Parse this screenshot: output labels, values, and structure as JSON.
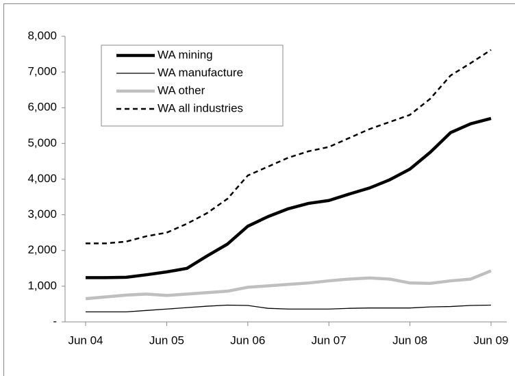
{
  "chart_data": {
    "type": "line",
    "categories": [
      "Jun 04",
      null,
      null,
      null,
      "Jun 05",
      null,
      null,
      null,
      "Jun 06",
      null,
      null,
      null,
      "Jun 07",
      null,
      null,
      null,
      "Jun 08",
      null,
      null,
      null,
      "Jun 09"
    ],
    "series": [
      {
        "name": "WA mining",
        "color": "#000000",
        "width": 4.5,
        "style": "solid",
        "values": [
          1240,
          1240,
          1250,
          1320,
          1400,
          1500,
          1850,
          2180,
          2680,
          2950,
          3170,
          3320,
          3400,
          3580,
          3750,
          3980,
          4280,
          4750,
          5300,
          5550,
          5700
        ]
      },
      {
        "name": "WA manufacture",
        "color": "#000000",
        "width": 1.3,
        "style": "solid",
        "values": [
          280,
          280,
          280,
          320,
          360,
          400,
          440,
          470,
          460,
          380,
          360,
          360,
          360,
          380,
          390,
          390,
          390,
          420,
          430,
          460,
          470
        ]
      },
      {
        "name": "WA other",
        "color": "#bfbfbf",
        "width": 4.5,
        "style": "solid",
        "values": [
          650,
          700,
          750,
          780,
          740,
          780,
          820,
          860,
          970,
          1010,
          1050,
          1090,
          1150,
          1200,
          1230,
          1200,
          1090,
          1080,
          1150,
          1200,
          1430
        ]
      },
      {
        "name": "WA all industries",
        "color": "#000000",
        "width": 2.5,
        "style": "dashed",
        "values": [
          2200,
          2200,
          2250,
          2400,
          2500,
          2750,
          3050,
          3450,
          4100,
          4350,
          4600,
          4780,
          4900,
          5150,
          5400,
          5600,
          5800,
          6250,
          6900,
          7250,
          7620
        ]
      }
    ],
    "ylim": [
      0,
      8000
    ],
    "yticks": [
      {
        "value": 0,
        "label": "-"
      },
      {
        "value": 1000,
        "label": "1,000"
      },
      {
        "value": 2000,
        "label": "2,000"
      },
      {
        "value": 3000,
        "label": "3,000"
      },
      {
        "value": 4000,
        "label": "4,000"
      },
      {
        "value": 5000,
        "label": "5,000"
      },
      {
        "value": 6000,
        "label": "6,000"
      },
      {
        "value": 7000,
        "label": "7,000"
      },
      {
        "value": 8000,
        "label": "8,000"
      }
    ],
    "grid": false,
    "legend": "top-left"
  }
}
